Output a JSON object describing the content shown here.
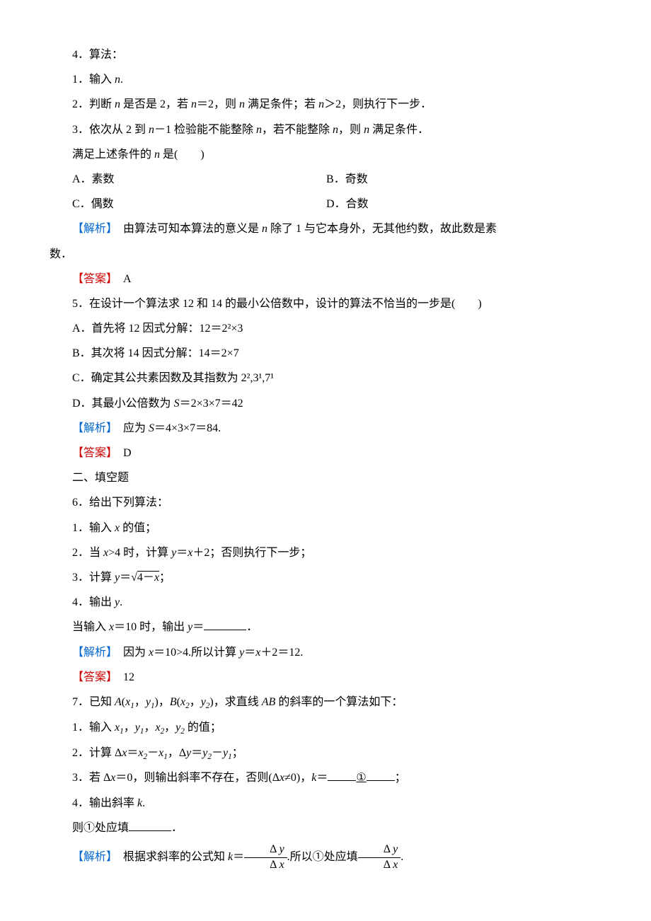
{
  "q4": {
    "title": "4．算法：",
    "step1": "1．输入 ",
    "var_n": "n",
    "step1_end": ".",
    "step2_a": "2．判断 ",
    "step2_b": " 是否是 2，若 ",
    "step2_c": "＝2，则 ",
    "step2_d": " 满足条件；若 ",
    "step2_e": "＞2，则执行下一步．",
    "step3_a": "3．依次从 2 到 ",
    "step3_b": "－1 检验能不能整除 ",
    "step3_c": "，若不能整除 ",
    "step3_d": "，则 ",
    "step3_e": " 满足条件．",
    "cond_a": "满足上述条件的 ",
    "cond_b": " 是(　　)",
    "optA": "A．素数",
    "optB": "B．奇数",
    "optC": "C．偶数",
    "optD": "D．合数",
    "expl_label": "【解析】",
    "expl_a": "　由算法可知本算法的意义是 ",
    "expl_b": " 除了 1 与它本身外，无其他约数，故此数是素",
    "expl_c": "数．",
    "ans_label": "【答案】",
    "ans": "　A"
  },
  "q5": {
    "title": "5．在设计一个算法求 12 和 14 的最小公倍数中，设计的算法不恰当的一步是(　　)",
    "optA": "A．首先将 12 因式分解：12＝2²×3",
    "optB": "B．其次将 14 因式分解：14＝2×7",
    "optC": "C．确定其公共素因数及其指数为 2²,3¹,7¹",
    "optD_a": "D．其最小公倍数为 ",
    "optD_S": "S",
    "optD_b": "＝2×3×7＝42",
    "expl_label": "【解析】",
    "expl_a": "　应为 ",
    "expl_S": "S",
    "expl_b": "＝4×3×7＝84.",
    "ans_label": "【答案】",
    "ans": "　D"
  },
  "sec2": "二、填空题",
  "q6": {
    "title": "6．给出下列算法：",
    "step1_a": "1．输入 ",
    "var_x": "x",
    "step1_b": " 的值；",
    "step2_a": "2．当 ",
    "step2_b": ">4 时，计算 ",
    "var_y": "y",
    "step2_c": "＝",
    "step2_d": "＋2；否则执行下一步；",
    "step3_a": "3．计算 ",
    "step3_b": "＝",
    "sqrt_inner": "4－x",
    "step3_c": "；",
    "step4_a": "4．输出 ",
    "step4_b": ".",
    "when_a": "当输入 ",
    "when_b": "＝10 时，输出 ",
    "when_c": "＝",
    "when_d": "．",
    "expl_label": "【解析】",
    "expl_a": "　因为 ",
    "expl_b": "＝10>4.所以计算 ",
    "expl_c": "＝",
    "expl_d": "＋2＝12.",
    "ans_label": "【答案】",
    "ans": "　12"
  },
  "q7": {
    "title_a": "7．已知 ",
    "var_A": "A",
    "paren_open": "(",
    "x1": "x",
    "sub1": "1",
    "comma": "，",
    "y1": "y",
    "paren_close": ")",
    "var_B": "B",
    "x2": "x",
    "sub2": "2",
    "y2": "y",
    "title_b": "，求直线 ",
    "var_AB": "AB",
    "title_c": " 的斜率的一个算法如下：",
    "step1_a": "1．输入 ",
    "step1_b": " 的值；",
    "step2_a": "2．计算 Δ",
    "step2_b": "＝",
    "step2_c": "－",
    "step2_d": "，Δ",
    "step2_e": "＝",
    "step2_f": "－",
    "step2_g": "；",
    "step3_a": "3．若 Δ",
    "step3_b": "＝0，则输出斜率不存在，否则(Δ",
    "step3_c": "≠0)，",
    "var_k": "k",
    "step3_d": "＝",
    "circled1": "①",
    "step3_e": "；",
    "step4_a": "4．输出斜率 ",
    "step4_b": ".",
    "then_a": "则①处应填",
    "then_b": "．",
    "expl_label": "【解析】",
    "expl_a": "　根据求斜率的公式知 ",
    "expl_b": "＝",
    "delta_y": "Δ y",
    "delta_x": "Δ x",
    "expl_c": ".所以①处应填",
    "expl_d": "."
  }
}
